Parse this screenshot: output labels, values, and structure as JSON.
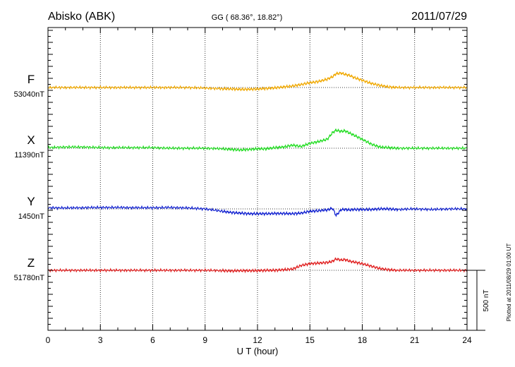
{
  "chart_data": {
    "type": "line",
    "title": "Abisko (ABK)",
    "subtitle": "GG ( 68.36°,  18.82°)",
    "date": "2011/07/29",
    "xlabel": "U T (hour)",
    "xlim": [
      0,
      24
    ],
    "xticks": [
      "0",
      "3",
      "6",
      "9",
      "12",
      "15",
      "18",
      "21",
      "24"
    ],
    "grid": true,
    "scale_bar_label": "500 nT",
    "scale_bar_nT": 500,
    "footnote": "Plotted at 2011/08/29 01:00 UT",
    "series": [
      {
        "name": "F",
        "baseline_label": "53040nT",
        "color": "#f0a800",
        "x": [
          0,
          1,
          2,
          3,
          4,
          5,
          6,
          7,
          8,
          9,
          10,
          10.5,
          11,
          11.5,
          12,
          12.5,
          13,
          13.5,
          14,
          14.5,
          15,
          15.5,
          16,
          16.3,
          16.5,
          16.8,
          17,
          17.3,
          17.5,
          18,
          18.5,
          19,
          19.5,
          20,
          21,
          22,
          23,
          24
        ],
        "offset_nT": [
          0,
          0,
          0,
          0,
          0,
          0,
          0,
          0,
          0,
          -5,
          -10,
          -12,
          -15,
          -15,
          -12,
          -8,
          -3,
          5,
          12,
          25,
          40,
          50,
          70,
          90,
          115,
          120,
          110,
          100,
          85,
          60,
          35,
          18,
          5,
          0,
          0,
          0,
          0,
          0
        ]
      },
      {
        "name": "X",
        "baseline_label": "11390nT",
        "color": "#22dd22",
        "x": [
          0,
          1,
          2,
          3,
          4,
          5,
          6,
          7,
          8,
          9,
          10,
          10.5,
          11,
          11.5,
          12,
          12.5,
          13,
          13.5,
          14,
          14.5,
          15,
          15.5,
          16,
          16.3,
          16.5,
          16.8,
          17,
          17.3,
          17.5,
          18,
          18.5,
          19,
          19.5,
          20,
          21,
          22,
          23,
          24
        ],
        "offset_nT": [
          5,
          10,
          10,
          5,
          5,
          5,
          5,
          0,
          0,
          0,
          -5,
          -10,
          -15,
          -10,
          -5,
          -5,
          5,
          10,
          25,
          15,
          40,
          55,
          75,
          130,
          150,
          140,
          145,
          125,
          110,
          75,
          35,
          10,
          5,
          0,
          0,
          0,
          0,
          0
        ]
      },
      {
        "name": "Y",
        "baseline_label": "1450nT",
        "color": "#1020d0",
        "x": [
          0,
          1,
          2,
          3,
          4,
          5,
          6,
          7,
          8,
          9,
          10,
          10.5,
          11,
          11.5,
          12,
          12.5,
          13,
          13.5,
          14,
          14.5,
          15,
          15.5,
          16,
          16.3,
          16.5,
          16.8,
          17,
          17.3,
          17.5,
          18,
          18.5,
          19,
          19.5,
          20,
          21,
          22,
          23,
          24
        ],
        "offset_nT": [
          10,
          8,
          10,
          12,
          12,
          10,
          10,
          12,
          8,
          0,
          -20,
          -30,
          -35,
          -40,
          -40,
          -40,
          -38,
          -38,
          -40,
          -35,
          -20,
          -15,
          -8,
          5,
          -55,
          -5,
          -5,
          -8,
          -5,
          -5,
          -5,
          0,
          0,
          -5,
          0,
          -5,
          0,
          0
        ]
      },
      {
        "name": "Z",
        "baseline_label": "51780nT",
        "color": "#e02020",
        "x": [
          0,
          1,
          2,
          3,
          4,
          5,
          6,
          7,
          8,
          9,
          10,
          10.5,
          11,
          11.5,
          12,
          12.5,
          13,
          13.5,
          14,
          14.5,
          15,
          15.5,
          16,
          16.3,
          16.5,
          16.8,
          17,
          17.3,
          17.5,
          18,
          18.5,
          19,
          19.5,
          20,
          21,
          22,
          23,
          24
        ],
        "offset_nT": [
          0,
          0,
          0,
          0,
          0,
          0,
          0,
          0,
          0,
          0,
          -3,
          -5,
          -3,
          -3,
          -3,
          0,
          0,
          5,
          10,
          40,
          55,
          60,
          65,
          75,
          95,
          85,
          90,
          75,
          70,
          55,
          35,
          15,
          5,
          0,
          0,
          0,
          0,
          0
        ]
      }
    ]
  }
}
